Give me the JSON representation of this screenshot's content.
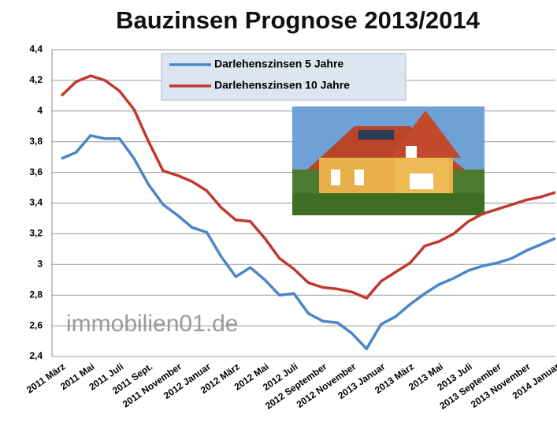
{
  "chart_data": {
    "type": "line",
    "title": "Bauzinsen Prognose 2013/2014",
    "watermark": "immobilien01.de",
    "categories": [
      "2011 März",
      null,
      "2011 Mai",
      null,
      "2011 Juli",
      null,
      "2011 Sept.",
      null,
      "2011 November",
      null,
      "2012 Januar",
      null,
      "2012 März",
      null,
      "2012 Mai",
      null,
      "2012 Juli",
      null,
      "2012 September",
      null,
      "2012 November",
      null,
      "2013 Januar",
      null,
      "2013 März",
      null,
      "2013 Mai",
      null,
      "2013 Juli",
      null,
      "2013 September",
      null,
      "2013 November",
      null,
      "2014 Januar"
    ],
    "series": [
      {
        "name": "Darlehenszinsen 5 Jahre",
        "color": "#4a86c8",
        "values": [
          3.69,
          3.73,
          3.84,
          3.82,
          3.82,
          3.69,
          3.52,
          3.39,
          3.32,
          3.24,
          3.21,
          3.05,
          2.92,
          2.98,
          2.9,
          2.8,
          2.81,
          2.68,
          2.63,
          2.62,
          2.55,
          2.45,
          2.61,
          2.66,
          2.74,
          2.81,
          2.87,
          2.91,
          2.96,
          2.99,
          3.01,
          3.04,
          3.09,
          3.13,
          3.17
        ]
      },
      {
        "name": "Darlehenszinsen 10 Jahre",
        "color": "#c0392f",
        "values": [
          4.1,
          4.19,
          4.23,
          4.2,
          4.13,
          4.01,
          3.8,
          3.61,
          3.58,
          3.54,
          3.48,
          3.37,
          3.29,
          3.28,
          3.17,
          3.04,
          2.97,
          2.88,
          2.85,
          2.84,
          2.82,
          2.78,
          2.89,
          2.95,
          3.01,
          3.12,
          3.15,
          3.2,
          3.28,
          3.33,
          3.36,
          3.39,
          3.42,
          3.44,
          3.47
        ]
      }
    ],
    "ylim": [
      2.4,
      4.4
    ],
    "yticks": [
      {
        "value": 2.4,
        "label": "2,4"
      },
      {
        "value": 2.6,
        "label": "2,6"
      },
      {
        "value": 2.8,
        "label": "2,8"
      },
      {
        "value": 3,
        "label": "3"
      },
      {
        "value": 3.2,
        "label": "3,2"
      },
      {
        "value": 3.4,
        "label": "3,4"
      },
      {
        "value": 3.6,
        "label": "3,6"
      },
      {
        "value": 3.8,
        "label": "3,8"
      },
      {
        "value": 4,
        "label": "4"
      },
      {
        "value": 4.2,
        "label": "4,2"
      },
      {
        "value": 4.4,
        "label": "4,4"
      }
    ],
    "grid": true
  }
}
